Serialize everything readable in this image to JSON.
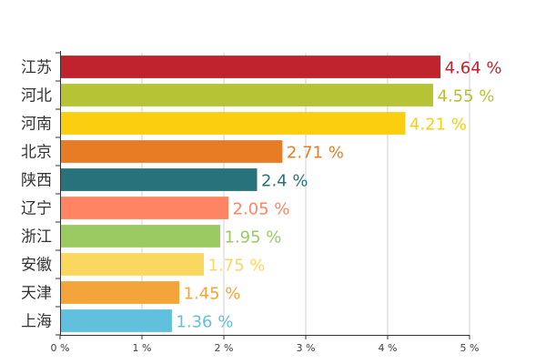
{
  "chart_data": {
    "type": "bar",
    "orientation": "horizontal",
    "title": "",
    "xlabel": "",
    "ylabel": "",
    "xlim": [
      0,
      5
    ],
    "grid": true,
    "legend": "none",
    "unit_suffix": " %",
    "categories": [
      "江苏",
      "河北",
      "河南",
      "北京",
      "陕西",
      "辽宁",
      "浙江",
      "安徽",
      "天津",
      "上海"
    ],
    "values": [
      4.64,
      4.55,
      4.21,
      2.71,
      2.4,
      2.05,
      1.95,
      1.75,
      1.45,
      1.36
    ],
    "value_labels": [
      "4.64 %",
      "4.55 %",
      "4.21 %",
      "2.71 %",
      "2.4 %",
      "2.05 %",
      "1.95 %",
      "1.75 %",
      "1.45 %",
      "1.36 %"
    ],
    "colors": [
      "#c0232c",
      "#b5c334",
      "#fcce10",
      "#e87c25",
      "#27727b",
      "#fe8463",
      "#9bca63",
      "#fad860",
      "#f3a43b",
      "#60c0dd"
    ],
    "ticks": [
      0,
      1,
      2,
      3,
      4,
      5
    ],
    "tick_labels": [
      "0 %",
      "1 %",
      "2 %",
      "3 %",
      "4 %",
      "5 %"
    ]
  }
}
